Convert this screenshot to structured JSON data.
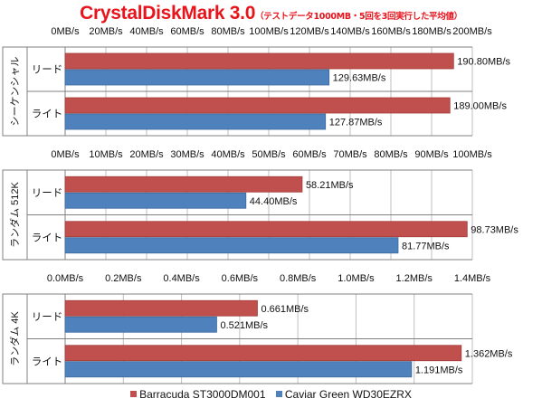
{
  "title": "CrystalDiskMark 3.0",
  "subtitle": "（テストデータ1000MB・5回を3回実行した平均値）",
  "colors": {
    "series1": "#c0504d",
    "series2": "#4f81bd"
  },
  "chart_data": [
    {
      "type": "bar",
      "orientation": "horizontal",
      "ylabel": "シーケンシャル",
      "categories": [
        "リード",
        "ライト"
      ],
      "series": [
        {
          "name": "Barracuda ST3000DM001",
          "values": [
            190.8,
            189.0
          ],
          "labels": [
            "190.80MB/s",
            "189.00MB/s"
          ]
        },
        {
          "name": "Caviar Green WD30EZRX",
          "values": [
            129.63,
            127.87
          ],
          "labels": [
            "129.63MB/s",
            "127.87MB/s"
          ]
        }
      ],
      "xlim": [
        0,
        200
      ],
      "ticks": [
        0,
        20,
        40,
        60,
        80,
        100,
        120,
        140,
        160,
        180,
        200
      ],
      "tick_labels": [
        "0MB/s",
        "20MB/s",
        "40MB/s",
        "60MB/s",
        "80MB/s",
        "100MB/s",
        "120MB/s",
        "140MB/s",
        "160MB/s",
        "180MB/s",
        "200MB/s"
      ],
      "grid": true
    },
    {
      "type": "bar",
      "orientation": "horizontal",
      "ylabel": "ランダム 512K",
      "categories": [
        "リード",
        "ライト"
      ],
      "series": [
        {
          "name": "Barracuda ST3000DM001",
          "values": [
            58.21,
            98.73
          ],
          "labels": [
            "58.21MB/s",
            "98.73MB/s"
          ]
        },
        {
          "name": "Caviar Green WD30EZRX",
          "values": [
            44.4,
            81.77
          ],
          "labels": [
            "44.40MB/s",
            "81.77MB/s"
          ]
        }
      ],
      "xlim": [
        0,
        100
      ],
      "ticks": [
        0,
        10,
        20,
        30,
        40,
        50,
        60,
        70,
        80,
        90,
        100
      ],
      "tick_labels": [
        "0MB/s",
        "10MB/s",
        "20MB/s",
        "30MB/s",
        "40MB/s",
        "50MB/s",
        "60MB/s",
        "70MB/s",
        "80MB/s",
        "90MB/s",
        "100MB/s"
      ],
      "grid": true
    },
    {
      "type": "bar",
      "orientation": "horizontal",
      "ylabel": "ランダム 4K",
      "categories": [
        "リード",
        "ライト"
      ],
      "series": [
        {
          "name": "Barracuda ST3000DM001",
          "values": [
            0.661,
            1.362
          ],
          "labels": [
            "0.661MB/s",
            "1.362MB/s"
          ]
        },
        {
          "name": "Caviar Green WD30EZRX",
          "values": [
            0.521,
            1.191
          ],
          "labels": [
            "0.521MB/s",
            "1.191MB/s"
          ]
        }
      ],
      "xlim": [
        0,
        1.4
      ],
      "ticks": [
        0,
        0.2,
        0.4,
        0.6,
        0.8,
        1.0,
        1.2,
        1.4
      ],
      "tick_labels": [
        "0.0MB/s",
        "0.2MB/s",
        "0.4MB/s",
        "0.6MB/s",
        "0.8MB/s",
        "1.0MB/s",
        "1.2MB/s",
        "1.4MB/s"
      ],
      "grid": true
    }
  ],
  "legend": [
    {
      "label": "Barracuda ST3000DM001"
    },
    {
      "label": "Caviar Green WD30EZRX"
    }
  ]
}
